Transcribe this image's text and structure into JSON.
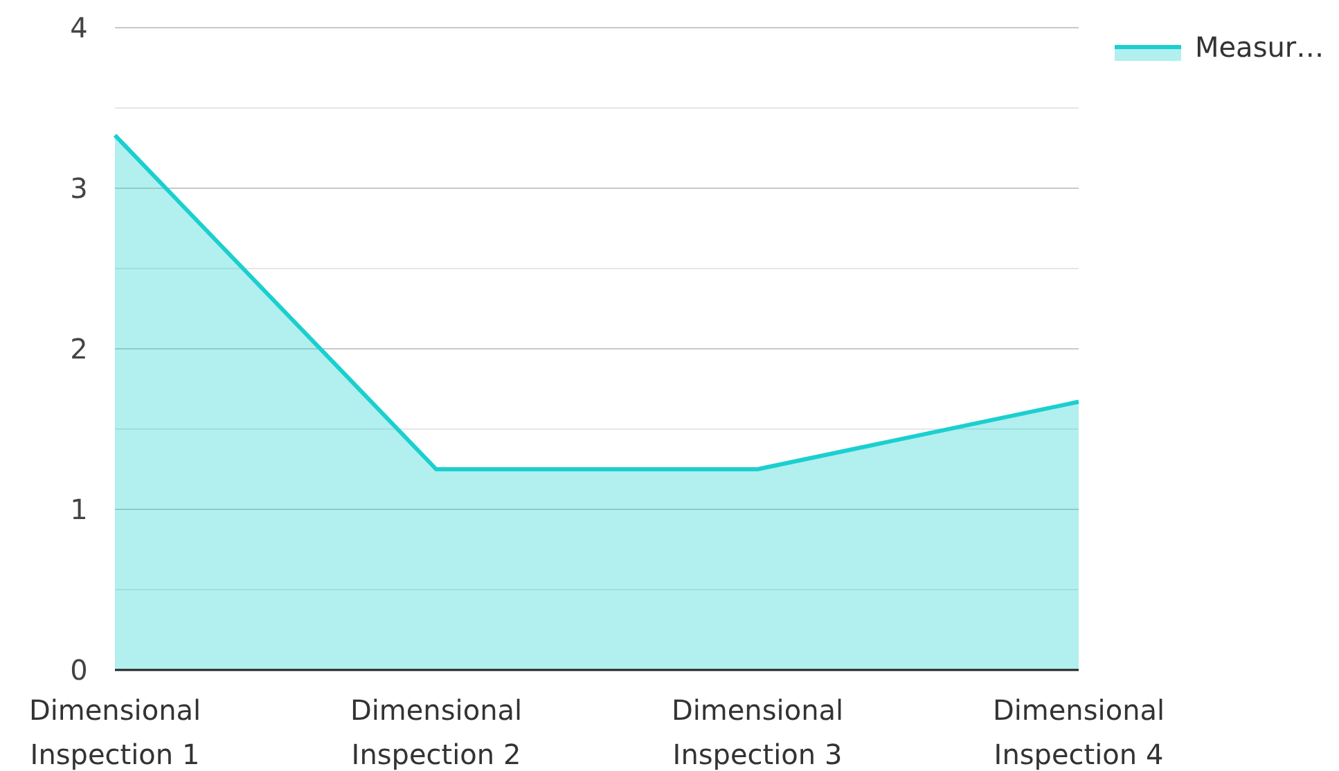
{
  "chart_data": {
    "type": "area",
    "categories": [
      "Dimensional Inspection 1",
      "Dimensional Inspection 2",
      "Dimensional Inspection 3",
      "Dimensional Inspection 4"
    ],
    "series": [
      {
        "name": "Measur…",
        "color": "#1ccfcf",
        "values": [
          3.33,
          1.25,
          1.25,
          1.67
        ]
      }
    ],
    "ylim": [
      0,
      4
    ],
    "yticks": [
      0,
      {
        "value": 0.5,
        "label": null
      },
      1,
      {
        "value": 1.5,
        "label": null
      },
      2,
      {
        "value": 2.5,
        "label": null
      },
      3,
      {
        "value": 3.5,
        "label": null
      },
      4
    ],
    "grid": "y",
    "legend": "top right"
  }
}
